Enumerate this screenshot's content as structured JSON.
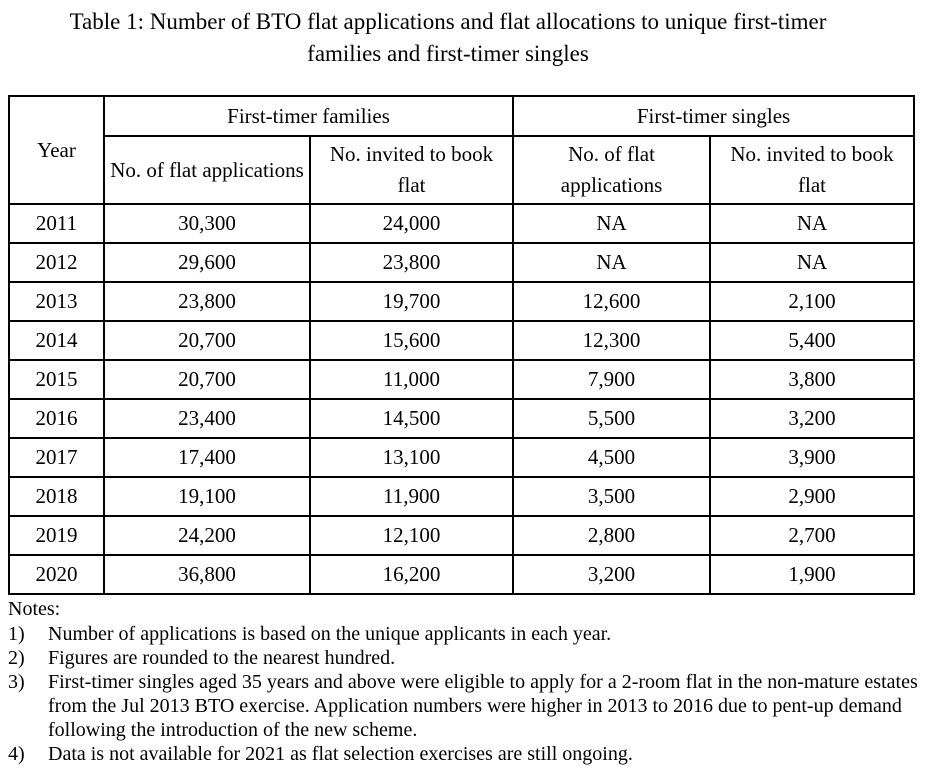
{
  "title": {
    "line1": "Table 1: Number of BTO flat applications and flat allocations to unique first-timer",
    "line2": "families and first-timer singles"
  },
  "table": {
    "year_header": "Year",
    "groups": [
      {
        "label": "First-timer families",
        "columns": [
          "No. of flat applications",
          "No. invited to book flat"
        ]
      },
      {
        "label": "First-timer singles",
        "columns": [
          "No. of flat applications",
          "No. invited to book flat"
        ]
      }
    ],
    "rows": [
      {
        "year": "2011",
        "values": [
          "30,300",
          "24,000",
          "NA",
          "NA"
        ]
      },
      {
        "year": "2012",
        "values": [
          "29,600",
          "23,800",
          "NA",
          "NA"
        ]
      },
      {
        "year": "2013",
        "values": [
          "23,800",
          "19,700",
          "12,600",
          "2,100"
        ]
      },
      {
        "year": "2014",
        "values": [
          "20,700",
          "15,600",
          "12,300",
          "5,400"
        ]
      },
      {
        "year": "2015",
        "values": [
          "20,700",
          "11,000",
          "7,900",
          "3,800"
        ]
      },
      {
        "year": "2016",
        "values": [
          "23,400",
          "14,500",
          "5,500",
          "3,200"
        ]
      },
      {
        "year": "2017",
        "values": [
          "17,400",
          "13,100",
          "4,500",
          "3,900"
        ]
      },
      {
        "year": "2018",
        "values": [
          "19,100",
          "11,900",
          "3,500",
          "2,900"
        ]
      },
      {
        "year": "2019",
        "values": [
          "24,200",
          "12,100",
          "2,800",
          "2,700"
        ]
      },
      {
        "year": "2020",
        "values": [
          "36,800",
          "16,200",
          "3,200",
          "1,900"
        ]
      }
    ]
  },
  "notes": {
    "heading": "Notes:",
    "items": [
      {
        "marker": "1)",
        "text": "Number of applications is based on the unique applicants in each year."
      },
      {
        "marker": "2)",
        "text": "Figures are rounded to the nearest hundred."
      },
      {
        "marker": "3)",
        "text": "First-timer singles aged 35 years and above were eligible to apply for a 2-room flat in the non-mature estates from the Jul 2013 BTO exercise. Application numbers were higher in 2013 to 2016 due to pent-up demand following the introduction of the new scheme."
      },
      {
        "marker": "4)",
        "text": "Data is not available for 2021 as flat selection exercises are still ongoing."
      }
    ]
  }
}
